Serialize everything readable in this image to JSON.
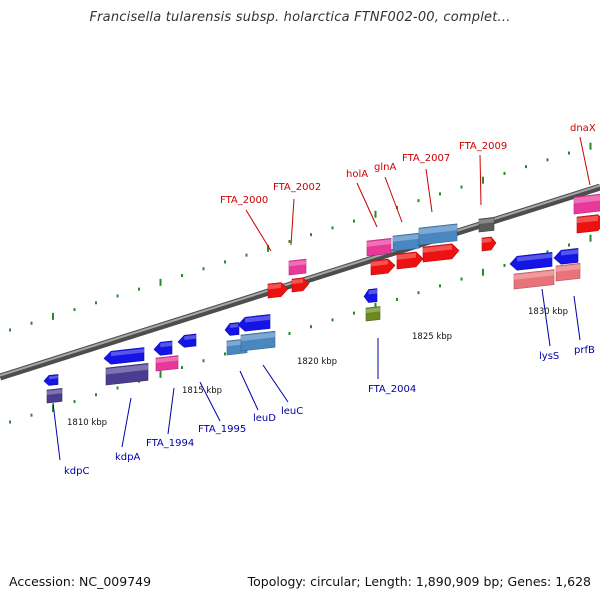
{
  "title": "Francisella tularensis subsp. holarctica FTNF002-00, complet...",
  "footer": {
    "accession": "Accession: NC_009749",
    "topology": "Topology: circular; Length: 1,890,909 bp; Genes: 1,628"
  },
  "colors": {
    "backbone": "#808080",
    "tick": "#2a8a2a",
    "label_top": "#cc0000",
    "label_bottom": "#0000aa",
    "blue": "#1414e6",
    "steelblue": "#4a86c0",
    "purple": "#4a3d8f",
    "pink": "#e8389a",
    "red": "#ee1111",
    "salmon": "#e8747a",
    "olive": "#6a8a20",
    "gray": "#5a5a5a"
  },
  "scale_labels": [
    "1810 kbp",
    "1815 kbp",
    "1820 kbp",
    "1825 kbp",
    "1830 kbp"
  ],
  "genes": [
    {
      "label": "kdpC",
      "strand": "bottom",
      "color": "blue"
    },
    {
      "label": "kdpA",
      "strand": "bottom",
      "color": "purple"
    },
    {
      "label": "FTA_1994",
      "strand": "bottom",
      "color": "pink"
    },
    {
      "label": "FTA_1995",
      "strand": "bottom",
      "color": "blue"
    },
    {
      "label": "leuD",
      "strand": "bottom",
      "color": "steelblue"
    },
    {
      "label": "leuC",
      "strand": "bottom",
      "color": "steelblue"
    },
    {
      "label": "FTA_2000",
      "strand": "top",
      "color": "red"
    },
    {
      "label": "FTA_2002",
      "strand": "top",
      "color": "pink"
    },
    {
      "label": "FTA_2004",
      "strand": "bottom",
      "color": "olive"
    },
    {
      "label": "holA",
      "strand": "top",
      "color": "pink"
    },
    {
      "label": "glnA",
      "strand": "top",
      "color": "steelblue"
    },
    {
      "label": "FTA_2007",
      "strand": "top",
      "color": "steelblue"
    },
    {
      "label": "FTA_2009",
      "strand": "top",
      "color": "gray"
    },
    {
      "label": "lysS",
      "strand": "bottom",
      "color": "salmon"
    },
    {
      "label": "prfB",
      "strand": "bottom",
      "color": "salmon"
    },
    {
      "label": "dnaX",
      "strand": "top",
      "color": "pink"
    }
  ]
}
